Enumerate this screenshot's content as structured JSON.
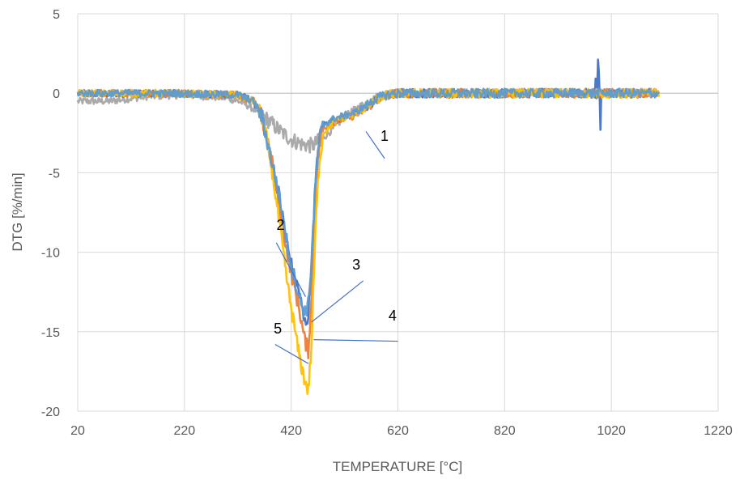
{
  "chart_data": {
    "type": "line",
    "title": "",
    "xlabel": "TEMPERATURE [°C]",
    "ylabel": "DTG [%/min]",
    "xlim": [
      20,
      1220
    ],
    "ylim": [
      -20,
      5
    ],
    "xticks": [
      20,
      220,
      420,
      620,
      820,
      1020,
      1220
    ],
    "yticks": [
      5,
      0,
      -5,
      -10,
      -15,
      -20
    ],
    "grid": true,
    "legend": "none",
    "series": [
      {
        "color": "#A5A5A5",
        "points": [
          [
            20,
            -0.5
          ],
          [
            80,
            -0.5
          ],
          [
            150,
            -0.2
          ],
          [
            220,
            -0.1
          ],
          [
            300,
            -0.3
          ],
          [
            330,
            -0.6
          ],
          [
            360,
            -1.2
          ],
          [
            380,
            -1.8
          ],
          [
            400,
            -2.4
          ],
          [
            420,
            -2.9
          ],
          [
            440,
            -3.2
          ],
          [
            460,
            -3.3
          ],
          [
            480,
            -2.8
          ],
          [
            500,
            -2.2
          ],
          [
            520,
            -1.5
          ],
          [
            540,
            -1.0
          ],
          [
            560,
            -0.6
          ],
          [
            580,
            -0.3
          ],
          [
            600,
            -0.1
          ],
          [
            620,
            0
          ],
          [
            800,
            0
          ],
          [
            1000,
            0
          ],
          [
            1110,
            0
          ]
        ]
      },
      {
        "color": "#4472C4",
        "points": [
          [
            20,
            0
          ],
          [
            200,
            0
          ],
          [
            320,
            -0.1
          ],
          [
            350,
            -0.5
          ],
          [
            365,
            -1.5
          ],
          [
            375,
            -3
          ],
          [
            385,
            -4.5
          ],
          [
            395,
            -6
          ],
          [
            405,
            -8
          ],
          [
            415,
            -10
          ],
          [
            425,
            -11.5
          ],
          [
            435,
            -12.5
          ],
          [
            445,
            -14.5
          ],
          [
            452,
            -14
          ],
          [
            458,
            -11
          ],
          [
            465,
            -6
          ],
          [
            472,
            -3
          ],
          [
            480,
            -2
          ],
          [
            500,
            -1.7
          ],
          [
            520,
            -1.5
          ],
          [
            540,
            -1.3
          ],
          [
            560,
            -0.9
          ],
          [
            580,
            -0.4
          ],
          [
            600,
            -0.1
          ],
          [
            620,
            0
          ],
          [
            800,
            0
          ],
          [
            1000,
            0
          ],
          [
            1110,
            0
          ]
        ]
      },
      {
        "color": "#ED7D31",
        "points": [
          [
            20,
            0
          ],
          [
            200,
            0
          ],
          [
            320,
            -0.1
          ],
          [
            350,
            -0.5
          ],
          [
            365,
            -1.5
          ],
          [
            375,
            -3
          ],
          [
            385,
            -4.5
          ],
          [
            395,
            -6.5
          ],
          [
            405,
            -8.5
          ],
          [
            415,
            -10.5
          ],
          [
            425,
            -12
          ],
          [
            435,
            -13.5
          ],
          [
            445,
            -15.5
          ],
          [
            452,
            -16.2
          ],
          [
            458,
            -13
          ],
          [
            465,
            -7
          ],
          [
            472,
            -3.5
          ],
          [
            480,
            -2.2
          ],
          [
            500,
            -1.8
          ],
          [
            520,
            -1.6
          ],
          [
            540,
            -1.4
          ],
          [
            560,
            -1.0
          ],
          [
            580,
            -0.4
          ],
          [
            600,
            -0.1
          ],
          [
            620,
            0
          ],
          [
            800,
            0
          ],
          [
            1000,
            0
          ],
          [
            1110,
            0
          ]
        ]
      },
      {
        "color": "#FFC000",
        "points": [
          [
            20,
            0
          ],
          [
            200,
            0
          ],
          [
            320,
            -0.1
          ],
          [
            350,
            -0.5
          ],
          [
            365,
            -1.5
          ],
          [
            375,
            -3
          ],
          [
            385,
            -5
          ],
          [
            395,
            -7.5
          ],
          [
            405,
            -10
          ],
          [
            415,
            -12.5
          ],
          [
            425,
            -14.5
          ],
          [
            435,
            -16.5
          ],
          [
            445,
            -18
          ],
          [
            452,
            -18.7
          ],
          [
            458,
            -16
          ],
          [
            465,
            -9
          ],
          [
            472,
            -4.5
          ],
          [
            480,
            -2.5
          ],
          [
            500,
            -1.8
          ],
          [
            520,
            -1.5
          ],
          [
            540,
            -1.3
          ],
          [
            560,
            -0.9
          ],
          [
            580,
            -0.4
          ],
          [
            600,
            -0.1
          ],
          [
            620,
            0
          ],
          [
            800,
            0
          ],
          [
            1000,
            0
          ],
          [
            1110,
            0
          ]
        ]
      },
      {
        "color": "#5B9BD5",
        "points": [
          [
            20,
            0
          ],
          [
            200,
            0
          ],
          [
            320,
            -0.1
          ],
          [
            350,
            -0.5
          ],
          [
            365,
            -1.5
          ],
          [
            375,
            -3
          ],
          [
            385,
            -4.5
          ],
          [
            395,
            -6
          ],
          [
            405,
            -8
          ],
          [
            415,
            -10
          ],
          [
            425,
            -11.5
          ],
          [
            435,
            -12.8
          ],
          [
            445,
            -13.8
          ],
          [
            452,
            -13.3
          ],
          [
            458,
            -10.5
          ],
          [
            465,
            -6
          ],
          [
            472,
            -3
          ],
          [
            480,
            -2
          ],
          [
            500,
            -1.6
          ],
          [
            520,
            -1.4
          ],
          [
            540,
            -1.2
          ],
          [
            560,
            -0.8
          ],
          [
            580,
            -0.3
          ],
          [
            600,
            -0.1
          ],
          [
            620,
            0
          ],
          [
            800,
            0
          ],
          [
            1000,
            0
          ],
          [
            1110,
            0
          ]
        ]
      }
    ],
    "annotations": [
      {
        "label": "1",
        "line_from": [
          595,
          -4.1
        ],
        "line_to": [
          560,
          -2.4
        ],
        "text_at": [
          595,
          -3
        ]
      },
      {
        "label": "2",
        "line_from": [
          392,
          -9.4
        ],
        "line_to": [
          447,
          -12.8
        ],
        "text_at": [
          400,
          -8.6
        ]
      },
      {
        "label": "3",
        "line_from": [
          555,
          -11.8
        ],
        "line_to": [
          458,
          -14.4
        ],
        "text_at": [
          542,
          -11.1
        ]
      },
      {
        "label": "4",
        "line_from": [
          620,
          -15.6
        ],
        "line_to": [
          462,
          -15.5
        ],
        "text_at": [
          610,
          -14.3
        ]
      },
      {
        "label": "5",
        "line_from": [
          390,
          -15.8
        ],
        "line_to": [
          452,
          -17
        ],
        "text_at": [
          395,
          -15.1
        ]
      }
    ]
  }
}
